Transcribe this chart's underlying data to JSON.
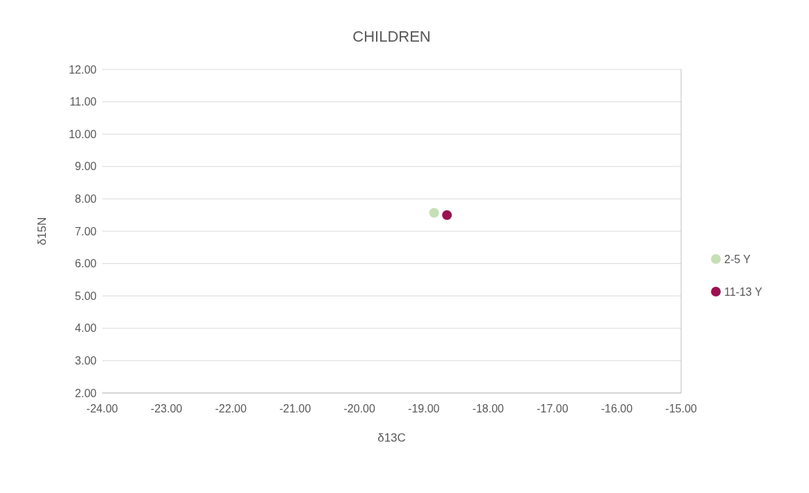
{
  "chart_data": {
    "type": "scatter",
    "title": "CHILDREN",
    "xlabel": "δ13C",
    "ylabel": "δ15N",
    "xlim": [
      -24,
      -15
    ],
    "xticks": [
      {
        "value": -24,
        "label": "-24.00"
      },
      {
        "value": -23,
        "label": "-23.00"
      },
      {
        "value": -22,
        "label": "-22.00"
      },
      {
        "value": -21,
        "label": "-21.00"
      },
      {
        "value": -20,
        "label": "-20.00"
      },
      {
        "value": -19,
        "label": "-19.00"
      },
      {
        "value": -18,
        "label": "-18.00"
      },
      {
        "value": -17,
        "label": "-17.00"
      },
      {
        "value": -16,
        "label": "-16.00"
      },
      {
        "value": -15,
        "label": "-15.00"
      }
    ],
    "ylim": [
      2,
      12
    ],
    "yticks": [
      {
        "value": 2,
        "label": "2.00"
      },
      {
        "value": 3,
        "label": "3.00"
      },
      {
        "value": 4,
        "label": "4.00"
      },
      {
        "value": 5,
        "label": "5.00"
      },
      {
        "value": 6,
        "label": "6.00"
      },
      {
        "value": 7,
        "label": "7.00"
      },
      {
        "value": 8,
        "label": "8.00"
      },
      {
        "value": 9,
        "label": "9.00"
      },
      {
        "value": 10,
        "label": "10.00"
      },
      {
        "value": 11,
        "label": "11.00"
      },
      {
        "value": 12,
        "label": "12.00"
      }
    ],
    "grid": "y",
    "legend": "right",
    "marker": "circle",
    "series": [
      {
        "name": "2-5 Y",
        "color": "#c5e0b4",
        "x": [
          -18.84
        ],
        "values": [
          7.57
        ]
      },
      {
        "name": "11-13 Y",
        "color": "#9b1150",
        "x": [
          -18.64
        ],
        "values": [
          7.5
        ]
      }
    ]
  }
}
